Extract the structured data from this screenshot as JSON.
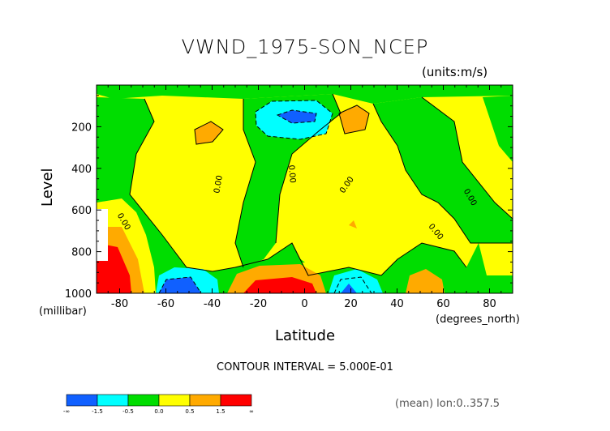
{
  "chart_data": {
    "type": "filled-contour",
    "title": "VWND_1975-SON_NCEP",
    "units_label": "(units:m/s)",
    "xlabel": "Latitude",
    "xlabel_unit": "(degrees_north)",
    "ylabel": "Level",
    "ylabel_unit": "(millibar)",
    "xlim": [
      -90,
      90
    ],
    "ylim": [
      1000,
      0
    ],
    "x_ticks": [
      -80,
      -60,
      -40,
      -20,
      0,
      20,
      40,
      60,
      80
    ],
    "y_ticks": [
      200,
      400,
      600,
      800,
      1000
    ],
    "contour_interval_text": "CONTOUR INTERVAL = 5.000E-01",
    "contour_labels": [
      "0.00",
      "0.00",
      "0.00",
      "0.00",
      "0.00",
      "0.00"
    ],
    "colorbar": {
      "colors": [
        "#1060ff",
        "#00ffff",
        "#00dd00",
        "#ffff00",
        "#ffaa00",
        "#ff0000"
      ],
      "labels": [
        "-∞",
        "-1.5",
        "-0.5",
        "0.0",
        "0.5",
        "1.5",
        "∞"
      ]
    },
    "footer": "(mean) lon:0..357.5"
  }
}
